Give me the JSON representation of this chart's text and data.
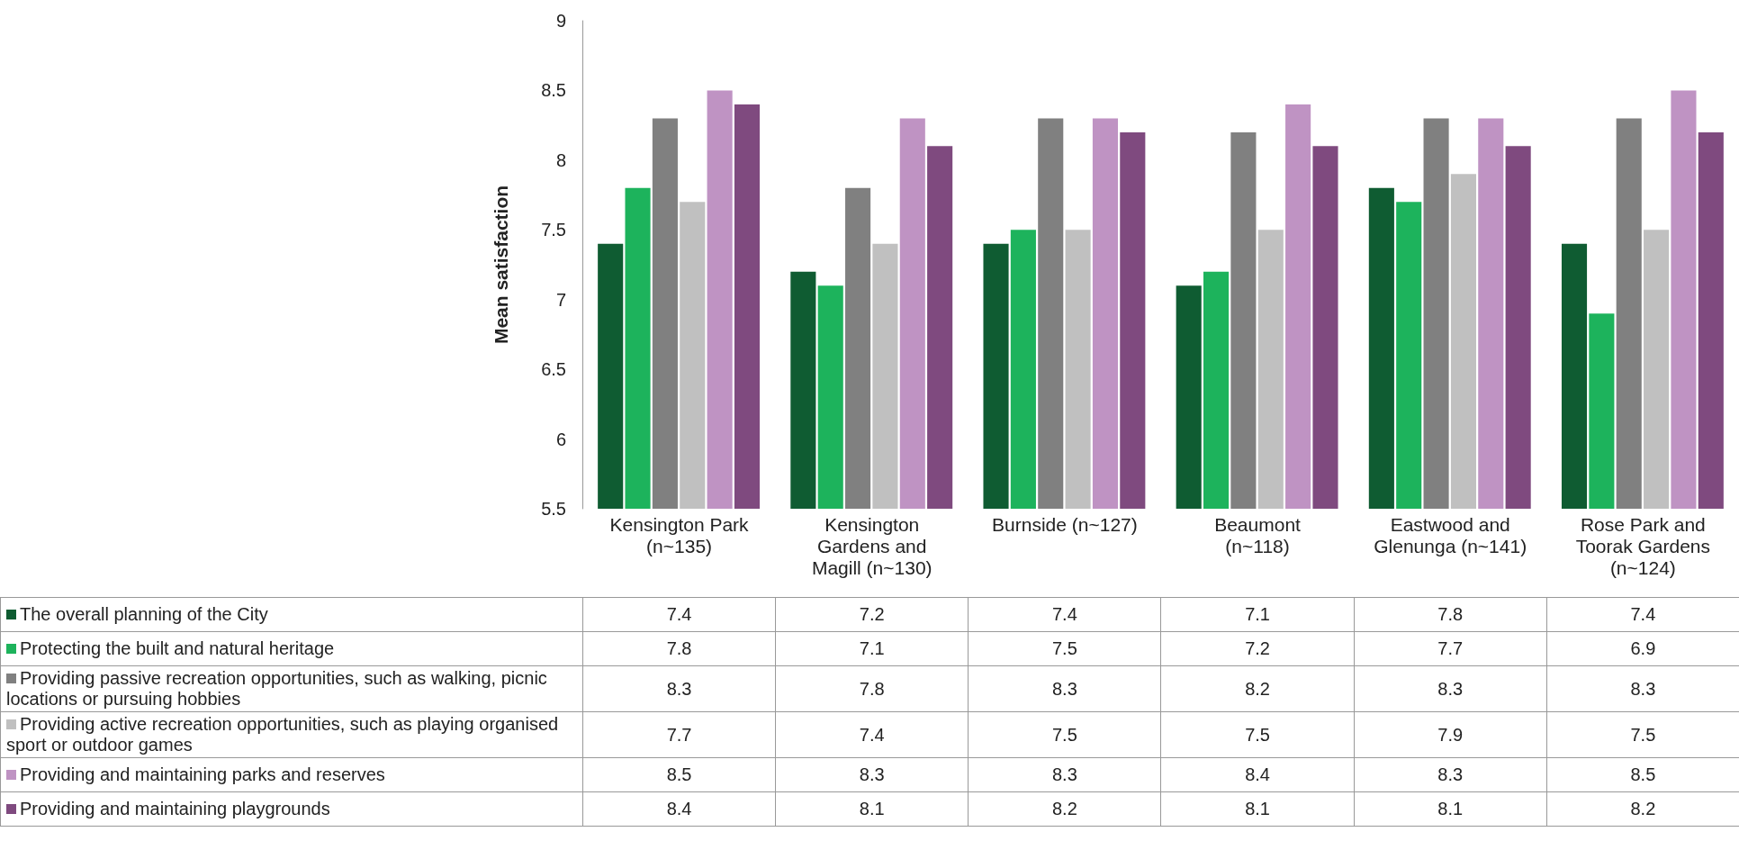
{
  "chart_data": {
    "type": "bar",
    "ylabel": "Mean satisfaction",
    "categories": [
      "Kensington Park (n~135)",
      "Kensington Gardens and Magill (n~130)",
      "Burnside (n~127)",
      "Beaumont (n~118)",
      "Eastwood and Glenunga (n~141)",
      "Rose Park and Toorak Gardens (n~124)"
    ],
    "series": [
      {
        "name": "The overall planning of the City",
        "color": "#0f5c32",
        "values": [
          7.4,
          7.2,
          7.4,
          7.1,
          7.8,
          7.4
        ]
      },
      {
        "name": "Protecting the built and natural heritage",
        "color": "#1db35c",
        "values": [
          7.8,
          7.1,
          7.5,
          7.2,
          7.7,
          6.9
        ]
      },
      {
        "name": "Providing passive recreation opportunities, such as walking, picnic locations or pursuing hobbies",
        "color": "#808080",
        "values": [
          8.3,
          7.8,
          8.3,
          8.2,
          8.3,
          8.3
        ]
      },
      {
        "name": "Providing active recreation opportunities, such as playing organised sport or outdoor games",
        "color": "#c0c0c0",
        "values": [
          7.7,
          7.4,
          7.5,
          7.5,
          7.9,
          7.5
        ]
      },
      {
        "name": "Providing and maintaining parks and reserves",
        "color": "#bf93c3",
        "values": [
          8.5,
          8.3,
          8.3,
          8.4,
          8.3,
          8.5
        ]
      },
      {
        "name": "Providing and maintaining playgrounds",
        "color": "#7f4a7f",
        "values": [
          8.4,
          8.1,
          8.2,
          8.1,
          8.1,
          8.2
        ]
      }
    ],
    "ylim": [
      5.5,
      9
    ],
    "yticks": [
      5.5,
      6,
      6.5,
      7,
      7.5,
      8,
      8.5,
      9
    ],
    "legend": "bottom",
    "data_labels": true
  }
}
